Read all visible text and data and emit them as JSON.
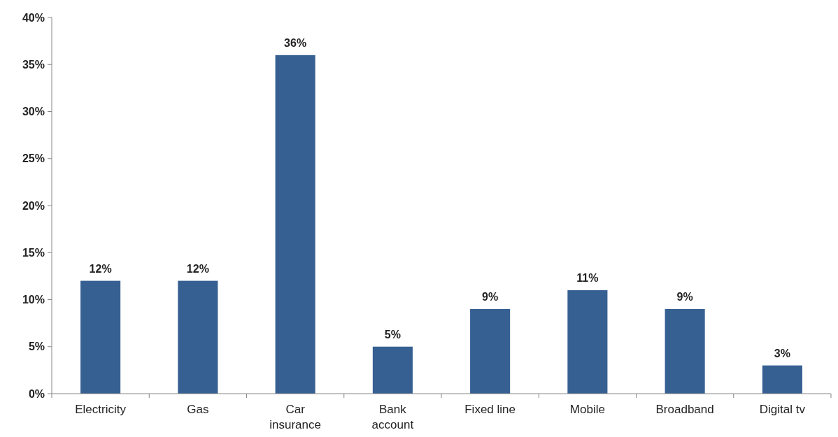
{
  "chart_data": {
    "type": "bar",
    "categories": [
      "Electricity",
      "Gas",
      "Car insurance",
      "Bank account",
      "Fixed line",
      "Mobile",
      "Broadband",
      "Digital tv"
    ],
    "values": [
      12,
      12,
      36,
      5,
      9,
      11,
      9,
      3
    ],
    "value_labels": [
      "12%",
      "12%",
      "36%",
      "5%",
      "9%",
      "11%",
      "9%",
      "3%"
    ],
    "color": "#376092",
    "ylim": [
      0,
      40
    ],
    "yticks": [
      {
        "value": 0,
        "label": "0%"
      },
      {
        "value": 5,
        "label": "5%"
      },
      {
        "value": 10,
        "label": "10%"
      },
      {
        "value": 15,
        "label": "15%"
      },
      {
        "value": 20,
        "label": "20%"
      },
      {
        "value": 25,
        "label": "25%"
      },
      {
        "value": 30,
        "label": "30%"
      },
      {
        "value": 35,
        "label": "35%"
      },
      {
        "value": 40,
        "label": "40%"
      }
    ],
    "grid": false
  }
}
